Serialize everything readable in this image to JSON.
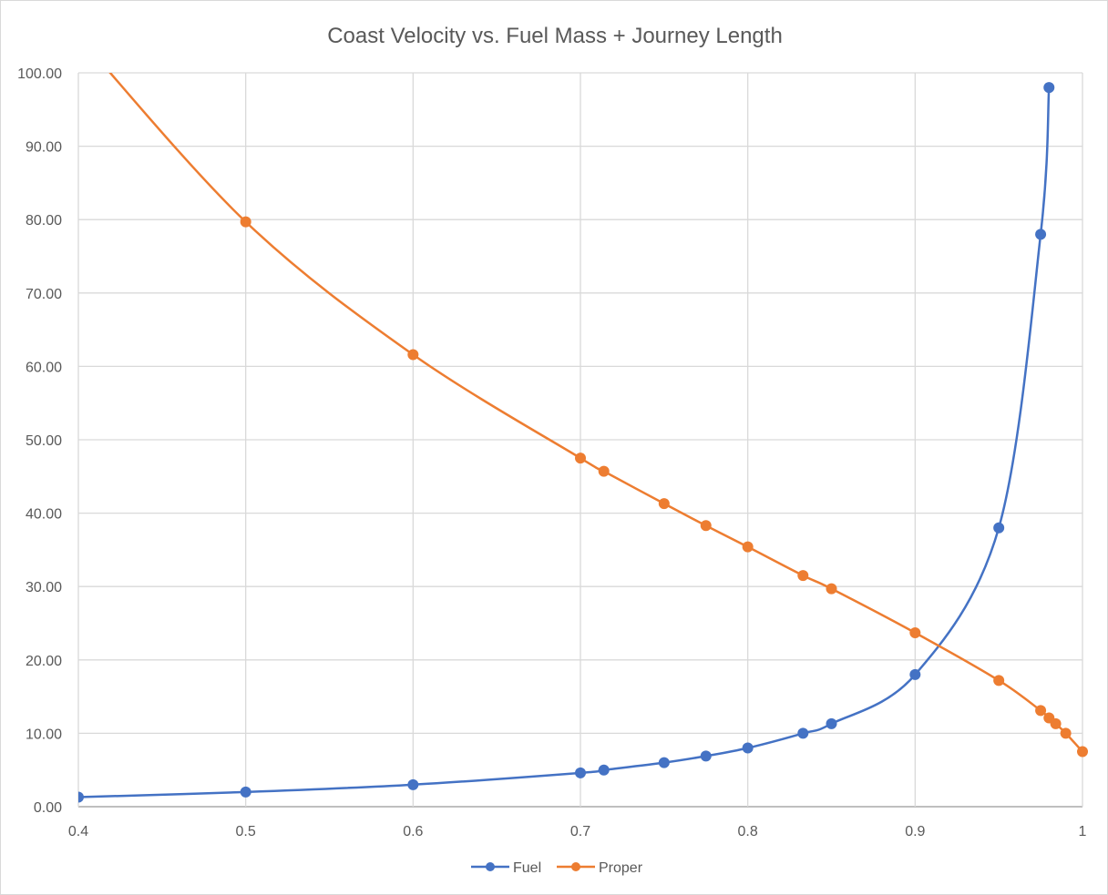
{
  "chart_data": {
    "type": "scatter",
    "title": "Coast Velocity vs. Fuel Mass + Journey Length",
    "xlabel": "",
    "ylabel": "",
    "xlim": [
      0.4,
      1
    ],
    "ylim": [
      0,
      100
    ],
    "x_ticks": [
      "0.4",
      "0.5",
      "0.6",
      "0.7",
      "0.8",
      "0.9",
      "1"
    ],
    "x_tick_values": [
      0.4,
      0.5,
      0.6,
      0.7,
      0.8,
      0.9,
      1
    ],
    "y_ticks": [
      "0.00",
      "10.00",
      "20.00",
      "30.00",
      "40.00",
      "50.00",
      "60.00",
      "70.00",
      "80.00",
      "90.00",
      "100.00"
    ],
    "y_tick_values": [
      0,
      10,
      20,
      30,
      40,
      50,
      60,
      70,
      80,
      90,
      100
    ],
    "grid": true,
    "legend_position": "bottom",
    "series": [
      {
        "name": "Fuel",
        "color": "#4472c4",
        "x": [
          0.4,
          0.5,
          0.6,
          0.7,
          0.714,
          0.75,
          0.775,
          0.8,
          0.833,
          0.85,
          0.9,
          0.95,
          0.975,
          0.98
        ],
        "y": [
          1.3,
          2.0,
          3.0,
          4.6,
          5.0,
          6.0,
          6.9,
          8.0,
          10.0,
          11.3,
          18.0,
          38.0,
          78.0,
          98.0
        ]
      },
      {
        "name": "Proper",
        "color": "#ed7d31",
        "x": [
          0.4,
          0.5,
          0.6,
          0.7,
          0.714,
          0.75,
          0.775,
          0.8,
          0.833,
          0.85,
          0.9,
          0.95,
          0.975,
          0.98,
          0.984,
          0.99,
          1.0
        ],
        "y": [
          105.0,
          79.7,
          61.6,
          47.5,
          45.7,
          41.3,
          38.3,
          35.4,
          31.5,
          29.7,
          23.7,
          17.2,
          13.1,
          12.1,
          11.3,
          10.0,
          7.5
        ]
      }
    ]
  }
}
